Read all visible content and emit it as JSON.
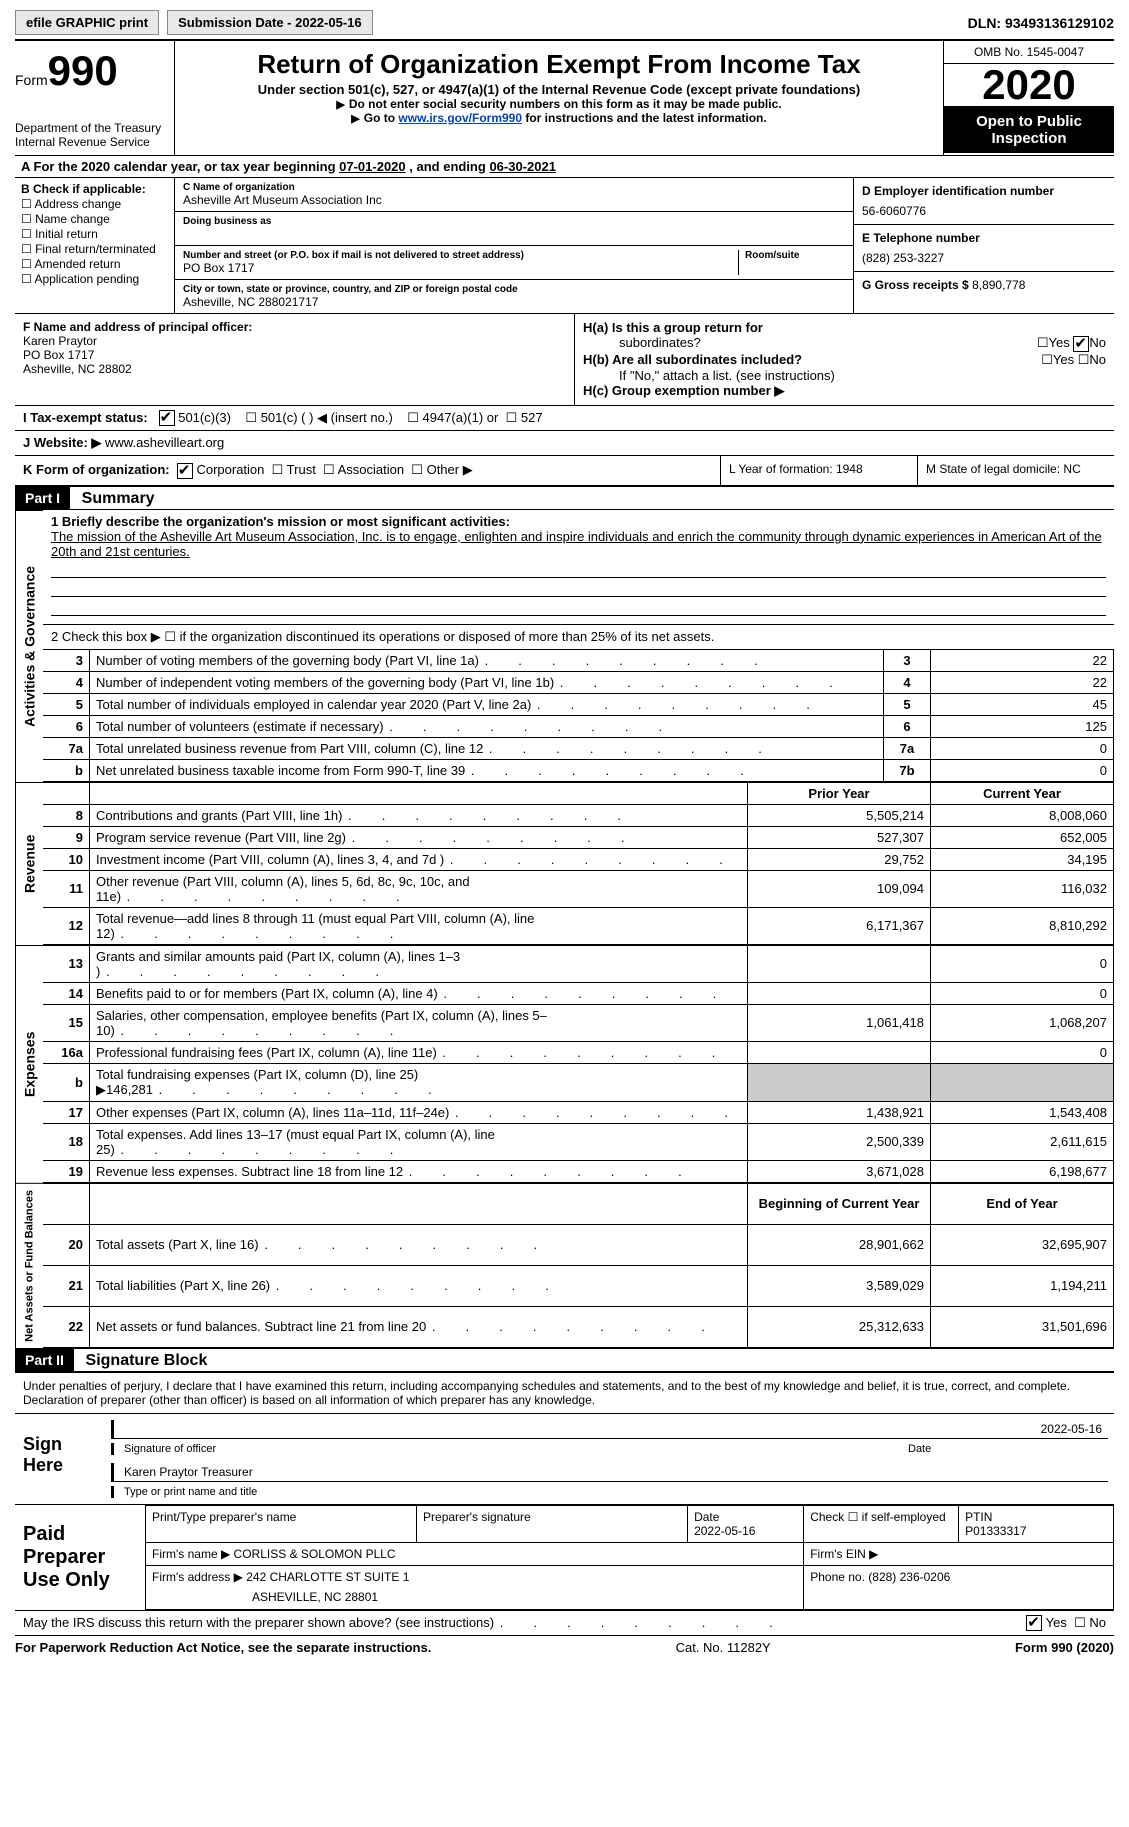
{
  "topbar": {
    "efile": "efile GRAPHIC print",
    "subdate_lbl": "Submission Date - ",
    "subdate": "2022-05-16",
    "dln_lbl": "DLN: ",
    "dln": "93493136129102"
  },
  "header": {
    "form_word": "Form",
    "form_no": "990",
    "dept": "Department of the Treasury",
    "irs": "Internal Revenue Service",
    "title": "Return of Organization Exempt From Income Tax",
    "sub": "Under section 501(c), 527, or 4947(a)(1) of the Internal Revenue Code (except private foundations)",
    "note1": "Do not enter social security numbers on this form as it may be made public.",
    "note2a": "Go to ",
    "note2link": "www.irs.gov/Form990",
    "note2b": " for instructions and the latest information.",
    "omb": "OMB No. 1545-0047",
    "year": "2020",
    "insp": "Open to Public Inspection"
  },
  "period": {
    "a": "A  For the 2020 calendar year, or tax year beginning ",
    "b": "07-01-2020",
    "c": "   , and ending ",
    "d": "06-30-2021"
  },
  "boxB": {
    "hdr": "B Check if applicable:",
    "items": [
      "Address change",
      "Name change",
      "Initial return",
      "Final return/terminated",
      "Amended return",
      "Application pending"
    ]
  },
  "boxC": {
    "c_lbl": "C Name of organization",
    "c_val": "Asheville Art Museum Association Inc",
    "dba_lbl": "Doing business as",
    "dba_val": "",
    "addr_lbl": "Number and street (or P.O. box if mail is not delivered to street address)",
    "room_lbl": "Room/suite",
    "addr_val": "PO Box 1717",
    "city_lbl": "City or town, state or province, country, and ZIP or foreign postal code",
    "city_val": "Asheville, NC  288021717"
  },
  "boxD": {
    "ein_lbl": "D Employer identification number",
    "ein": "56-6060776",
    "tel_lbl": "E Telephone number",
    "tel": "(828) 253-3227",
    "gross_lbl": "G Gross receipts $ ",
    "gross": "8,890,778"
  },
  "boxF": {
    "lbl": "F  Name and address of principal officer:",
    "name": "Karen Praytor",
    "a1": "PO Box 1717",
    "a2": "Asheville, NC  28802"
  },
  "boxH": {
    "ha": "H(a)  Is this a group return for",
    "ha2": "subordinates?",
    "hb": "H(b)  Are all subordinates included?",
    "hbn": "If \"No,\" attach a list. (see instructions)",
    "hc": "H(c)  Group exemption number ▶",
    "yes": "Yes",
    "no": "No"
  },
  "taxex": {
    "lbl": "I   Tax-exempt status:",
    "a": "501(c)(3)",
    "b": "501(c) (  ) ◀ (insert no.)",
    "c": "4947(a)(1) or",
    "d": "527"
  },
  "web": {
    "lbl": "J   Website: ▶",
    "val": "  www.ashevilleart.org"
  },
  "kline": {
    "lbl": "K Form of organization:",
    "a": "Corporation",
    "b": "Trust",
    "c": "Association",
    "d": "Other ▶"
  },
  "lm": {
    "l": "L Year of formation: 1948",
    "m": "M State of legal domicile: NC"
  },
  "part1": {
    "sum": "Summary",
    "p": "Part I"
  },
  "mission": {
    "l1": "1   Briefly describe the organization's mission or most significant activities:",
    "txt": "The mission of the Asheville Art Museum Association, Inc. is to engage, enlighten and inspire individuals and enrich the community through dynamic experiences in American Art of the 20th and 21st centuries."
  },
  "gov": {
    "l2": "2   Check this box ▶ ☐  if the organization discontinued its operations or disposed of more than 25% of its net assets.",
    "rows": [
      {
        "n": "3",
        "d": "Number of voting members of the governing body (Part VI, line 1a)",
        "b": "3",
        "v": "22"
      },
      {
        "n": "4",
        "d": "Number of independent voting members of the governing body (Part VI, line 1b)",
        "b": "4",
        "v": "22"
      },
      {
        "n": "5",
        "d": "Total number of individuals employed in calendar year 2020 (Part V, line 2a)",
        "b": "5",
        "v": "45"
      },
      {
        "n": "6",
        "d": "Total number of volunteers (estimate if necessary)",
        "b": "6",
        "v": "125"
      },
      {
        "n": "7a",
        "d": "Total unrelated business revenue from Part VIII, column (C), line 12",
        "b": "7a",
        "v": "0"
      },
      {
        "n": "b",
        "d": "Net unrelated business taxable income from Form 990-T, line 39",
        "b": "7b",
        "v": "0"
      }
    ]
  },
  "rev": {
    "hdr": {
      "prior": "Prior Year",
      "cur": "Current Year"
    },
    "rows": [
      {
        "n": "8",
        "d": "Contributions and grants (Part VIII, line 1h)",
        "p": "5,505,214",
        "c": "8,008,060"
      },
      {
        "n": "9",
        "d": "Program service revenue (Part VIII, line 2g)",
        "p": "527,307",
        "c": "652,005"
      },
      {
        "n": "10",
        "d": "Investment income (Part VIII, column (A), lines 3, 4, and 7d )",
        "p": "29,752",
        "c": "34,195"
      },
      {
        "n": "11",
        "d": "Other revenue (Part VIII, column (A), lines 5, 6d, 8c, 9c, 10c, and 11e)",
        "p": "109,094",
        "c": "116,032"
      },
      {
        "n": "12",
        "d": "Total revenue—add lines 8 through 11 (must equal Part VIII, column (A), line 12)",
        "p": "6,171,367",
        "c": "8,810,292"
      }
    ]
  },
  "exp": {
    "rows": [
      {
        "n": "13",
        "d": "Grants and similar amounts paid (Part IX, column (A), lines 1–3 )",
        "p": "",
        "c": "0"
      },
      {
        "n": "14",
        "d": "Benefits paid to or for members (Part IX, column (A), line 4)",
        "p": "",
        "c": "0"
      },
      {
        "n": "15",
        "d": "Salaries, other compensation, employee benefits (Part IX, column (A), lines 5–10)",
        "p": "1,061,418",
        "c": "1,068,207"
      },
      {
        "n": "16a",
        "d": "Professional fundraising fees (Part IX, column (A), line 11e)",
        "p": "",
        "c": "0"
      },
      {
        "n": "b",
        "d": "Total fundraising expenses (Part IX, column (D), line 25) ▶146,281",
        "p": "shade",
        "c": "shade"
      },
      {
        "n": "17",
        "d": "Other expenses (Part IX, column (A), lines 11a–11d, 11f–24e)",
        "p": "1,438,921",
        "c": "1,543,408"
      },
      {
        "n": "18",
        "d": "Total expenses. Add lines 13–17 (must equal Part IX, column (A), line 25)",
        "p": "2,500,339",
        "c": "2,611,615"
      },
      {
        "n": "19",
        "d": "Revenue less expenses. Subtract line 18 from line 12",
        "p": "3,671,028",
        "c": "6,198,677"
      }
    ]
  },
  "net": {
    "hdr": {
      "prior": "Beginning of Current Year",
      "cur": "End of Year"
    },
    "rows": [
      {
        "n": "20",
        "d": "Total assets (Part X, line 16)",
        "p": "28,901,662",
        "c": "32,695,907"
      },
      {
        "n": "21",
        "d": "Total liabilities (Part X, line 26)",
        "p": "3,589,029",
        "c": "1,194,211"
      },
      {
        "n": "22",
        "d": "Net assets or fund balances. Subtract line 21 from line 20",
        "p": "25,312,633",
        "c": "31,501,696"
      }
    ]
  },
  "vlabels": {
    "gov": "Activities & Governance",
    "rev": "Revenue",
    "exp": "Expenses",
    "net": "Net Assets or Fund Balances"
  },
  "part2": {
    "p": "Part II",
    "t": "Signature Block"
  },
  "decl": "Under penalties of perjury, I declare that I have examined this return, including accompanying schedules and statements, and to the best of my knowledge and belief, it is true, correct, and complete. Declaration of preparer (other than officer) is based on all information of which preparer has any knowledge.",
  "sign": {
    "lbl": "Sign Here",
    "sig": "Signature of officer",
    "date": "Date",
    "sigdate": "2022-05-16",
    "name": "Karen Praytor  Treasurer",
    "namelbl": "Type or print name and title"
  },
  "prep": {
    "lbl": "Paid Preparer Use Only",
    "h": {
      "a": "Print/Type preparer's name",
      "b": "Preparer's signature",
      "c": "Date",
      "d": "Check ☐ if self-employed",
      "e": "PTIN"
    },
    "r1": {
      "c": "2022-05-16",
      "e": "P01333317"
    },
    "r2": {
      "a": "Firm's name   ▶",
      "b": "CORLISS & SOLOMON PLLC",
      "c": "Firm's EIN ▶"
    },
    "r3": {
      "a": "Firm's address ▶",
      "b": "242 CHARLOTTE ST SUITE 1",
      "c": "Phone no. (828) 236-0206"
    },
    "r3b": "ASHEVILLE, NC  28801"
  },
  "discuss": {
    "q": "May the IRS discuss this return with the preparer shown above? (see instructions)",
    "yes": "Yes",
    "no": "No"
  },
  "footer": {
    "a": "For Paperwork Reduction Act Notice, see the separate instructions.",
    "b": "Cat. No. 11282Y",
    "c": "Form 990 (2020)"
  }
}
